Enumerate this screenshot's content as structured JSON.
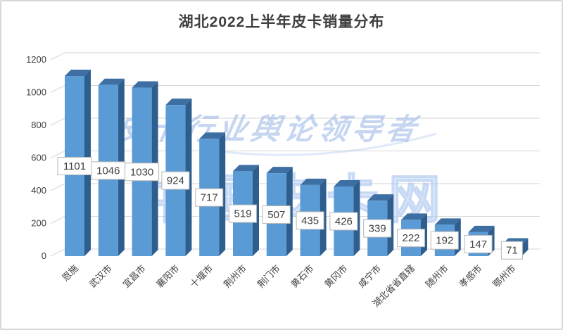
{
  "chart_data": {
    "type": "bar",
    "style": "3d-column",
    "title": "湖北2022上半年皮卡销量分布",
    "categories": [
      "恩施",
      "武汉市",
      "宜昌市",
      "襄阳市",
      "十堰市",
      "荆州市",
      "荆门市",
      "黄石市",
      "黄冈市",
      "咸宁市",
      "湖北省省直辖",
      "随州市",
      "孝感市",
      "鄂州市"
    ],
    "values": [
      1101,
      1046,
      1030,
      924,
      717,
      519,
      507,
      435,
      426,
      339,
      222,
      192,
      147,
      71
    ],
    "xlabel": "",
    "ylabel": "",
    "ylim": [
      0,
      1200
    ],
    "yticks": [
      0,
      200,
      400,
      600,
      800,
      1000,
      1200
    ],
    "grid": true,
    "legend": "none",
    "data_labels": true,
    "colors": {
      "front": "#5B9BD5",
      "side": "#2E5E8E",
      "top": "#3D6FA3",
      "gridline": "#d6d6d6",
      "text": "#404040"
    }
  },
  "watermark": {
    "line1": "皮卡行业舆论领导者",
    "line2": "中国皮卡网"
  }
}
